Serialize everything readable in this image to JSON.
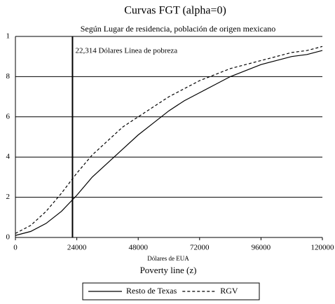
{
  "chart_data": {
    "type": "line",
    "title": "Curvas FGT (alpha=0)",
    "subtitle": "Según Lugar de residencia, población de origen mexicano",
    "x_label_unit": "Dólares de EUA",
    "x_label": "Poverty line (z)",
    "annotation": "22,314 Dólares Linea de pobreza",
    "poverty_line": 22314,
    "x": [
      0,
      6000,
      12000,
      18000,
      24000,
      30000,
      36000,
      42000,
      48000,
      54000,
      60000,
      66000,
      72000,
      78000,
      84000,
      90000,
      96000,
      102000,
      108000,
      114000,
      120000
    ],
    "series": [
      {
        "name": "Resto de Texas",
        "color": "#000000",
        "dash": "solid",
        "values": [
          0.01,
          0.03,
          0.07,
          0.13,
          0.21,
          0.3,
          0.37,
          0.44,
          0.51,
          0.57,
          0.63,
          0.68,
          0.72,
          0.76,
          0.8,
          0.83,
          0.86,
          0.88,
          0.9,
          0.91,
          0.93
        ]
      },
      {
        "name": "RGV",
        "color": "#000000",
        "dash": "dashed",
        "values": [
          0.02,
          0.06,
          0.13,
          0.22,
          0.32,
          0.41,
          0.48,
          0.55,
          0.6,
          0.65,
          0.7,
          0.74,
          0.78,
          0.81,
          0.84,
          0.86,
          0.88,
          0.9,
          0.92,
          0.93,
          0.95
        ]
      }
    ],
    "xlim": [
      0,
      120000
    ],
    "xticks": [
      0,
      24000,
      48000,
      72000,
      96000,
      120000
    ],
    "ylim": [
      0,
      1
    ],
    "yticks": [
      0,
      {
        "value": 0.2,
        "label": "2"
      },
      {
        "value": 0.4,
        "label": "4"
      },
      {
        "value": 0.6,
        "label": "6"
      },
      {
        "value": 0.8,
        "label": "8"
      },
      1
    ],
    "grid": true,
    "legend": "bottom"
  }
}
